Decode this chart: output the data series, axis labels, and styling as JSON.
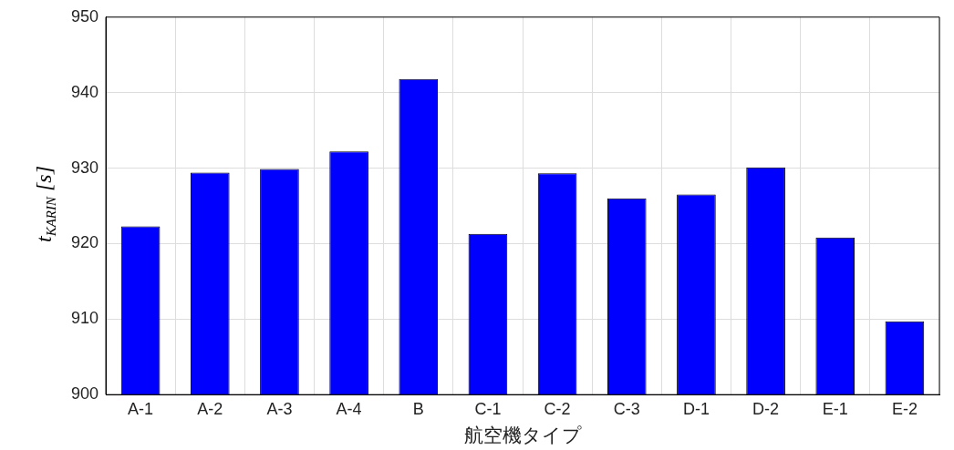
{
  "chart_data": {
    "type": "bar",
    "xlabel": "航空機タイプ",
    "ylabel": "t$_{KARIN}$ [s]",
    "categories": [
      "A-1",
      "A-2",
      "A-3",
      "A-4",
      "B",
      "C-1",
      "C-2",
      "C-3",
      "D-1",
      "D-2",
      "E-1",
      "E-2"
    ],
    "values": [
      922.3,
      929.4,
      929.9,
      932.2,
      941.8,
      921.3,
      929.3,
      926.0,
      926.5,
      930.1,
      920.8,
      909.7
    ],
    "color": "#0000ff",
    "ylim": [
      900,
      950
    ],
    "yticks": [
      900,
      910,
      920,
      930,
      940,
      950
    ],
    "grid": true
  }
}
